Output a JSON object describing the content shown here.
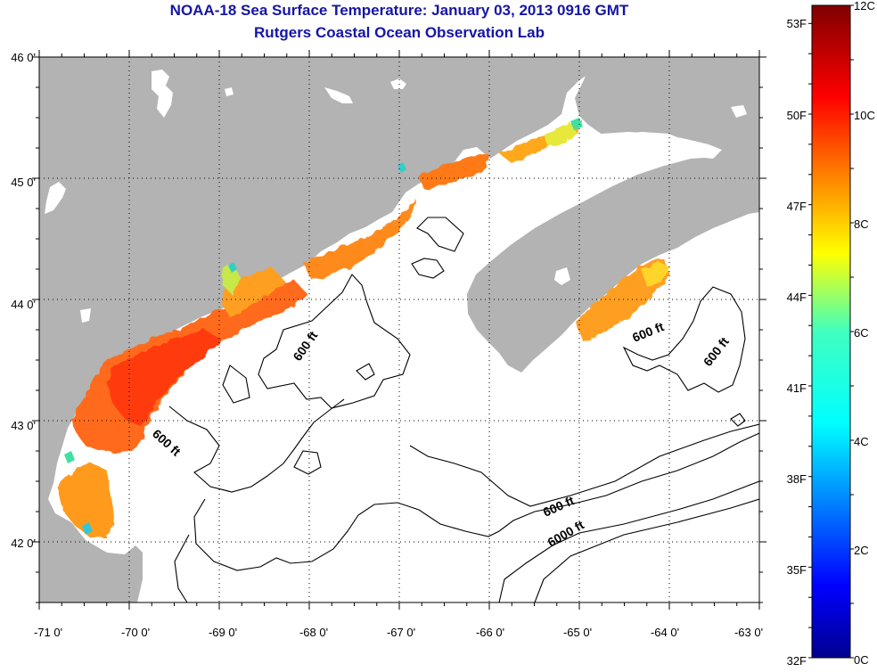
{
  "title": {
    "line1": "NOAA-18 Sea Surface Temperature:  January 03, 2013 0916 GMT",
    "line2": "Rutgers Coastal Ocean Observation Lab"
  },
  "map": {
    "latitude_labels": [
      "46 0'",
      "45 0'",
      "44 0'",
      "43 0'",
      "42 0'"
    ],
    "longitude_labels": [
      "-71 0'",
      "-70 0'",
      "-69 0'",
      "-68 0'",
      "-67 0'",
      "-66 0'",
      "-65 0'",
      "-64 0'",
      "-63 0'"
    ],
    "lat_range": [
      41.5,
      46.0
    ],
    "lon_range": [
      -71.0,
      -63.0
    ],
    "grid": "dotted",
    "contour_labels": [
      "600 ft",
      "600 ft",
      "600 ft",
      "600 ft",
      "600 ft",
      "6000 ft"
    ],
    "colors": {
      "land": "#b3b3b3",
      "no_data": "#ffffff",
      "contour": "#000000",
      "title": "#1515a6"
    }
  },
  "colorbar": {
    "fahrenheit_labels": [
      "53F",
      "50F",
      "47F",
      "44F",
      "41F",
      "38F",
      "35F",
      "32F"
    ],
    "celsius_labels": [
      "12C",
      "10C",
      "8C",
      "6C",
      "4C",
      "2C",
      "0C"
    ],
    "range_c": [
      0,
      12
    ],
    "colormap": "jet"
  }
}
